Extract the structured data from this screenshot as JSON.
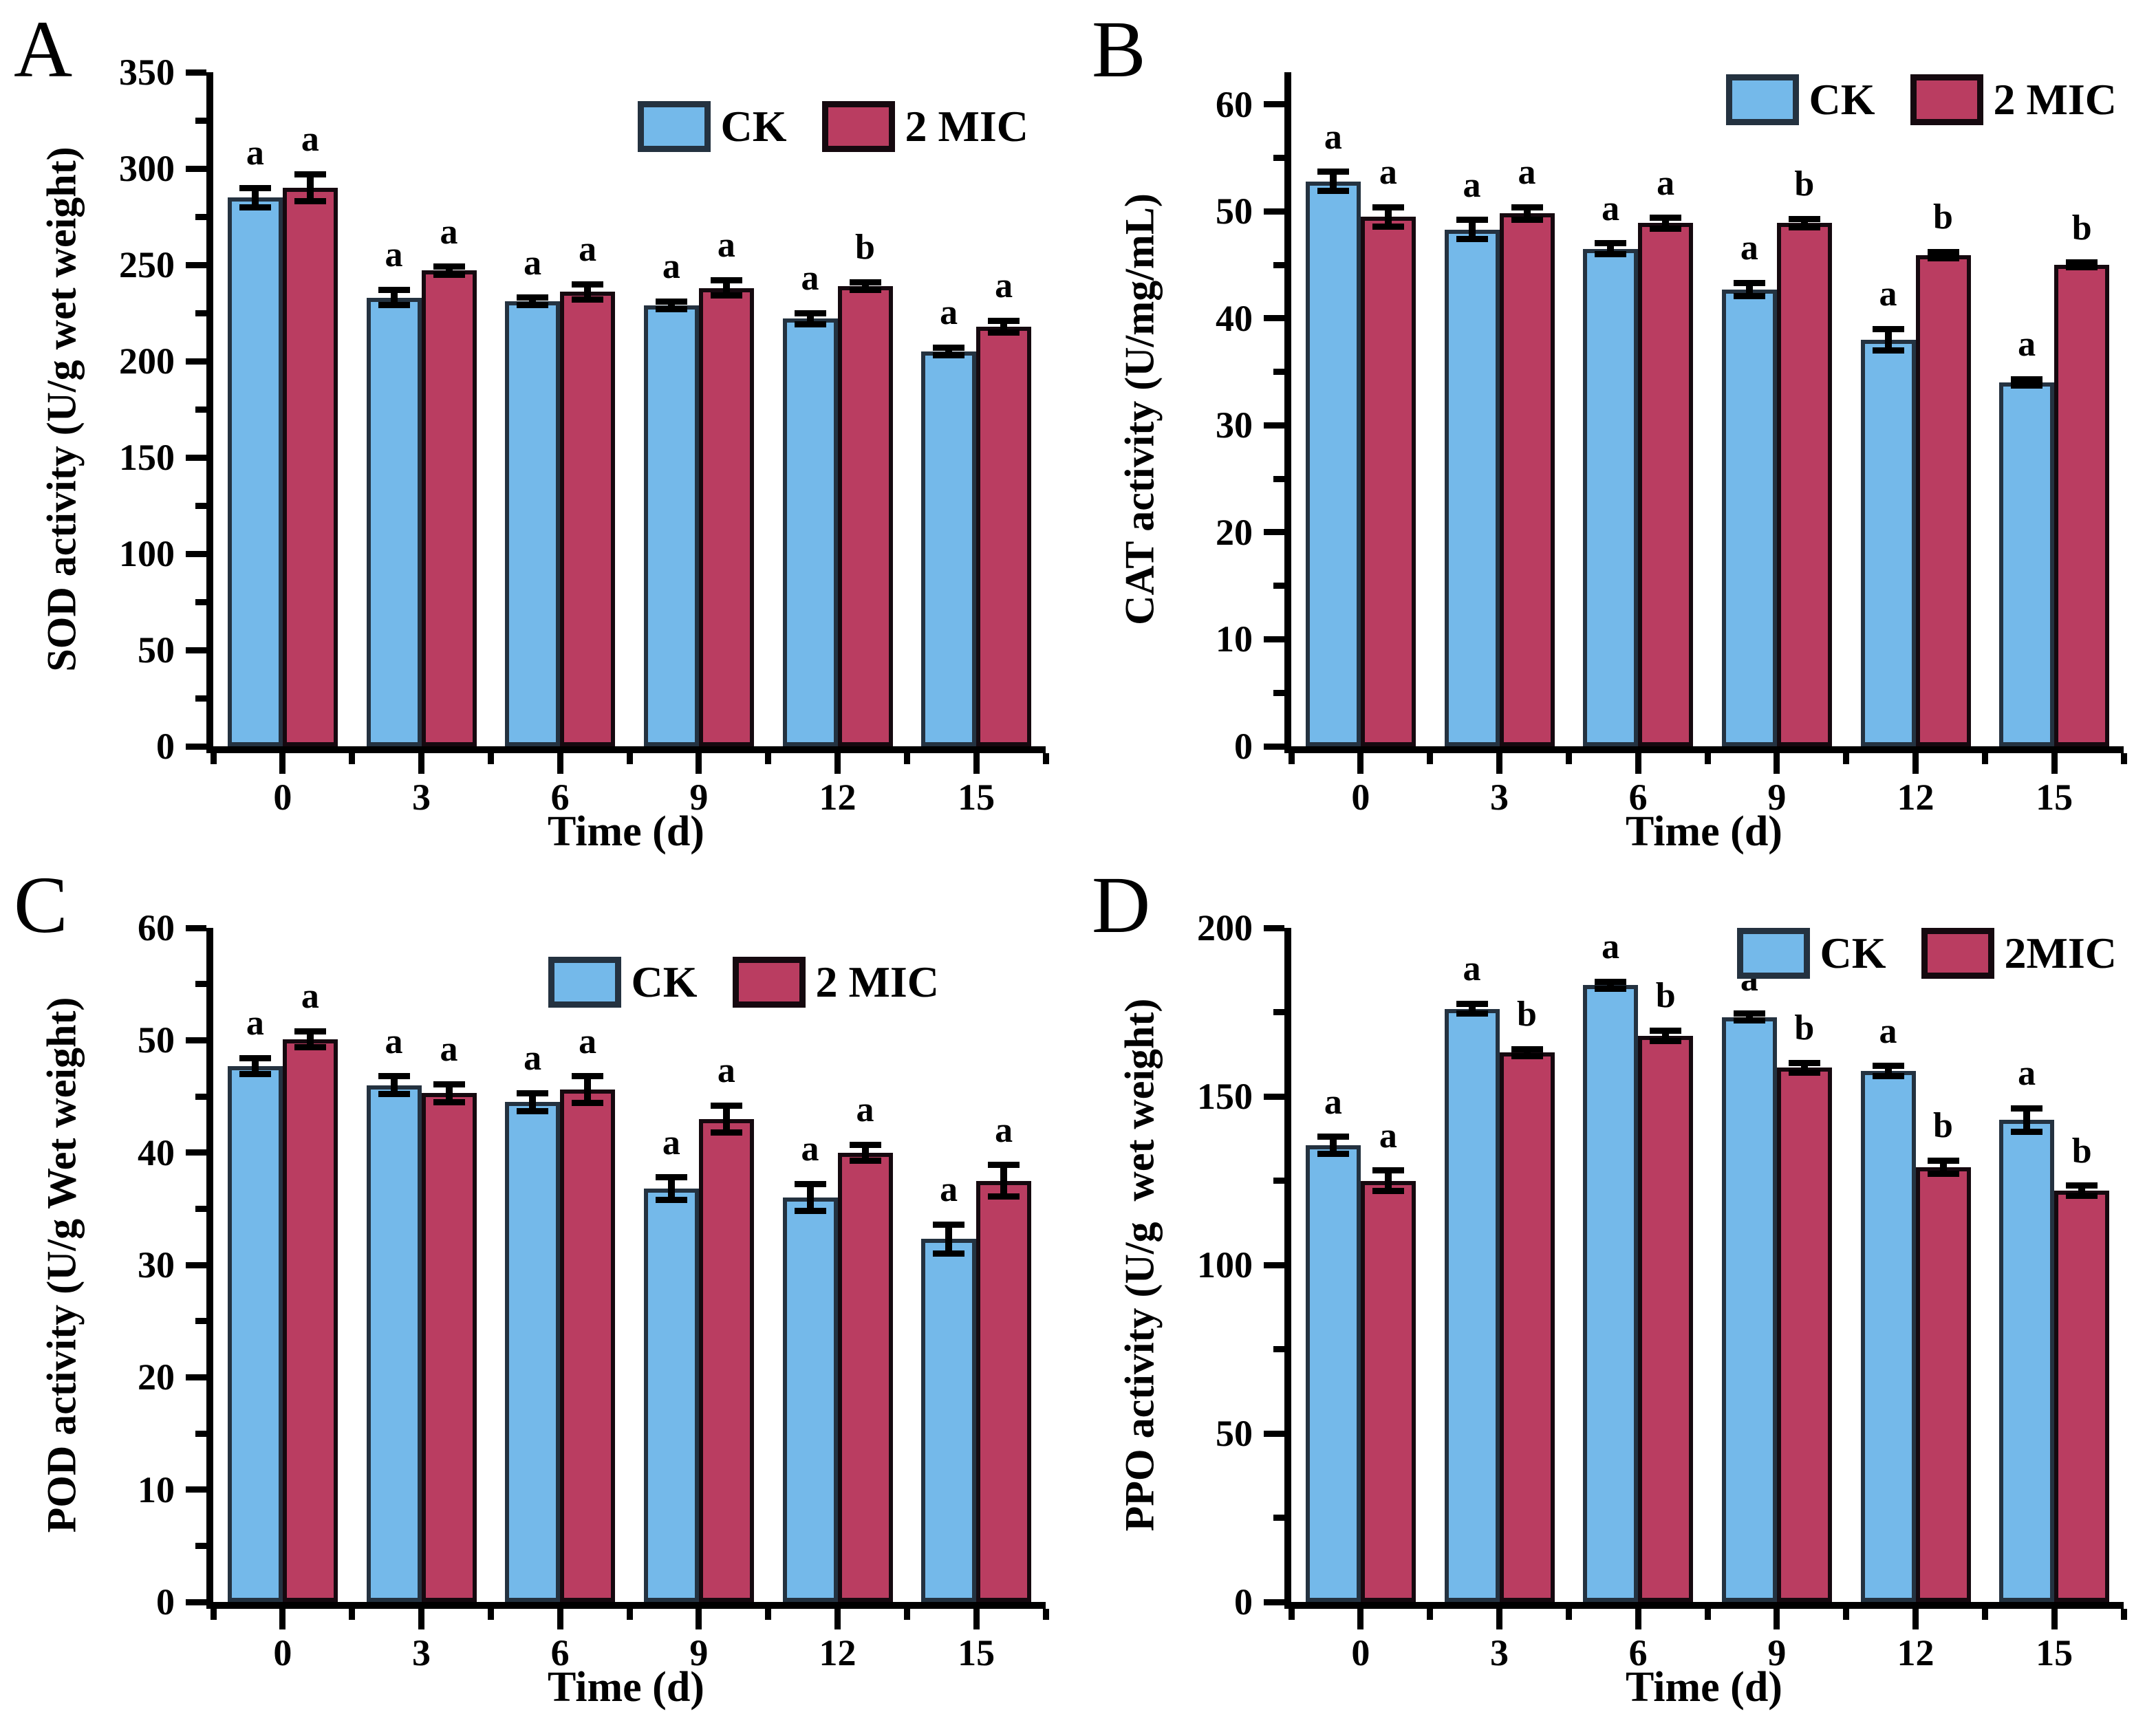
{
  "figure_title": "",
  "colors": {
    "ck_fill": "#74B9EA",
    "ck_border": "#243240",
    "mic_fill": "#BA3D61",
    "mic_border": "#15090F",
    "axis": "#000000"
  },
  "chart_data": [
    {
      "type": "bar",
      "panel_label": "A",
      "ylabel": "SOD activity (U/g wet weight)",
      "xlabel": "Time (d)",
      "categories": [
        "0",
        "3",
        "6",
        "9",
        "12",
        "15"
      ],
      "y_axis": {
        "min": 0,
        "max": 350,
        "axis_max": 350,
        "major_step": 50,
        "minor_step": 25,
        "tick_labels": [
          "0",
          "50",
          "100",
          "150",
          "200",
          "250",
          "300",
          "350"
        ]
      },
      "legend": {
        "labels": [
          "CK",
          "2 MIC"
        ],
        "position": "top-right-inside"
      },
      "grid": false,
      "series": [
        {
          "name": "CK",
          "color": "#74B9EA",
          "border": "#243240",
          "values": [
            285,
            233,
            231,
            229,
            222,
            205
          ],
          "errors": [
            5,
            4,
            2,
            2,
            3,
            2
          ],
          "letters": [
            "a",
            "a",
            "a",
            "a",
            "a",
            "a"
          ]
        },
        {
          "name": "2 MIC",
          "color": "#BA3D61",
          "border": "#15090F",
          "values": [
            290,
            247,
            236,
            238,
            239,
            218
          ],
          "errors": [
            7,
            2,
            4,
            4,
            2,
            3
          ],
          "letters": [
            "a",
            "a",
            "a",
            "a",
            "b",
            "a"
          ]
        }
      ]
    },
    {
      "type": "bar",
      "panel_label": "B",
      "ylabel": "CAT activity (U/mg/mL)",
      "xlabel": "Time (d)",
      "categories": [
        "0",
        "3",
        "6",
        "9",
        "12",
        "15"
      ],
      "y_axis": {
        "min": 0,
        "max": 60,
        "axis_max": 63,
        "major_step": 10,
        "minor_step": 5,
        "tick_labels": [
          "0",
          "10",
          "20",
          "30",
          "40",
          "50",
          "60"
        ]
      },
      "legend": {
        "labels": [
          "CK",
          "2 MIC"
        ],
        "position": "top-right-inside"
      },
      "grid": false,
      "series": [
        {
          "name": "CK",
          "color": "#74B9EA",
          "border": "#243240",
          "values": [
            52.8,
            48.3,
            46.5,
            42.7,
            38.0,
            34.0
          ],
          "errors": [
            0.9,
            0.9,
            0.5,
            0.6,
            1.0,
            0.3
          ],
          "letters": [
            "a",
            "a",
            "a",
            "a",
            "a",
            "a"
          ]
        },
        {
          "name": "2 MIC",
          "color": "#BA3D61",
          "border": "#15090F",
          "values": [
            49.5,
            49.8,
            48.9,
            48.9,
            45.9,
            45.0
          ],
          "errors": [
            0.9,
            0.6,
            0.5,
            0.4,
            0.3,
            0.2
          ],
          "letters": [
            "a",
            "a",
            "a",
            "b",
            "b",
            "b"
          ]
        }
      ]
    },
    {
      "type": "bar",
      "panel_label": "C",
      "ylabel": "POD activity (U/g Wet weight)",
      "xlabel": "Time (d)",
      "categories": [
        "0",
        "3",
        "6",
        "9",
        "12",
        "15"
      ],
      "y_axis": {
        "min": 0,
        "max": 60,
        "axis_max": 60,
        "major_step": 10,
        "minor_step": 5,
        "tick_labels": [
          "0",
          "10",
          "20",
          "30",
          "40",
          "50",
          "60"
        ]
      },
      "legend": {
        "labels": [
          "CK",
          "2 MIC"
        ],
        "position": "top-right-inside"
      },
      "grid": false,
      "series": [
        {
          "name": "CK",
          "color": "#74B9EA",
          "border": "#243240",
          "values": [
            47.7,
            46.0,
            44.5,
            36.8,
            36.0,
            32.3
          ],
          "errors": [
            0.7,
            0.8,
            0.8,
            1.0,
            1.2,
            1.3
          ],
          "letters": [
            "a",
            "a",
            "a",
            "a",
            "a",
            "a"
          ]
        },
        {
          "name": "2 MIC",
          "color": "#BA3D61",
          "border": "#15090F",
          "values": [
            50.1,
            45.3,
            45.6,
            43.0,
            40.0,
            37.5
          ],
          "errors": [
            0.7,
            0.8,
            1.2,
            1.2,
            0.7,
            1.4
          ],
          "letters": [
            "a",
            "a",
            "a",
            "a",
            "a",
            "a"
          ]
        }
      ]
    },
    {
      "type": "bar",
      "panel_label": "D",
      "ylabel": "PPO activity (U/g  wet weight)",
      "xlabel": "Time (d)",
      "categories": [
        "0",
        "3",
        "6",
        "9",
        "12",
        "15"
      ],
      "y_axis": {
        "min": 0,
        "max": 200,
        "axis_max": 200,
        "major_step": 50,
        "minor_step": 25,
        "tick_labels": [
          "0",
          "50",
          "100",
          "150",
          "200"
        ]
      },
      "legend": {
        "labels": [
          "CK",
          "2MIC"
        ],
        "position": "top-right-inside"
      },
      "grid": false,
      "series": [
        {
          "name": "CK",
          "color": "#74B9EA",
          "border": "#243240",
          "values": [
            135.5,
            176,
            183,
            173.5,
            157.5,
            143
          ],
          "errors": [
            2.5,
            1.5,
            1,
            1,
            1.5,
            3.5
          ],
          "letters": [
            "a",
            "a",
            "a",
            "a",
            "a",
            "a"
          ]
        },
        {
          "name": "2MIC",
          "color": "#BA3D61",
          "border": "#15090F",
          "values": [
            125,
            163,
            168,
            158.5,
            129,
            122
          ],
          "errors": [
            3,
            1,
            1.5,
            1.5,
            2,
            1.5
          ],
          "letters": [
            "a",
            "b",
            "b",
            "b",
            "b",
            "b"
          ]
        }
      ]
    }
  ]
}
